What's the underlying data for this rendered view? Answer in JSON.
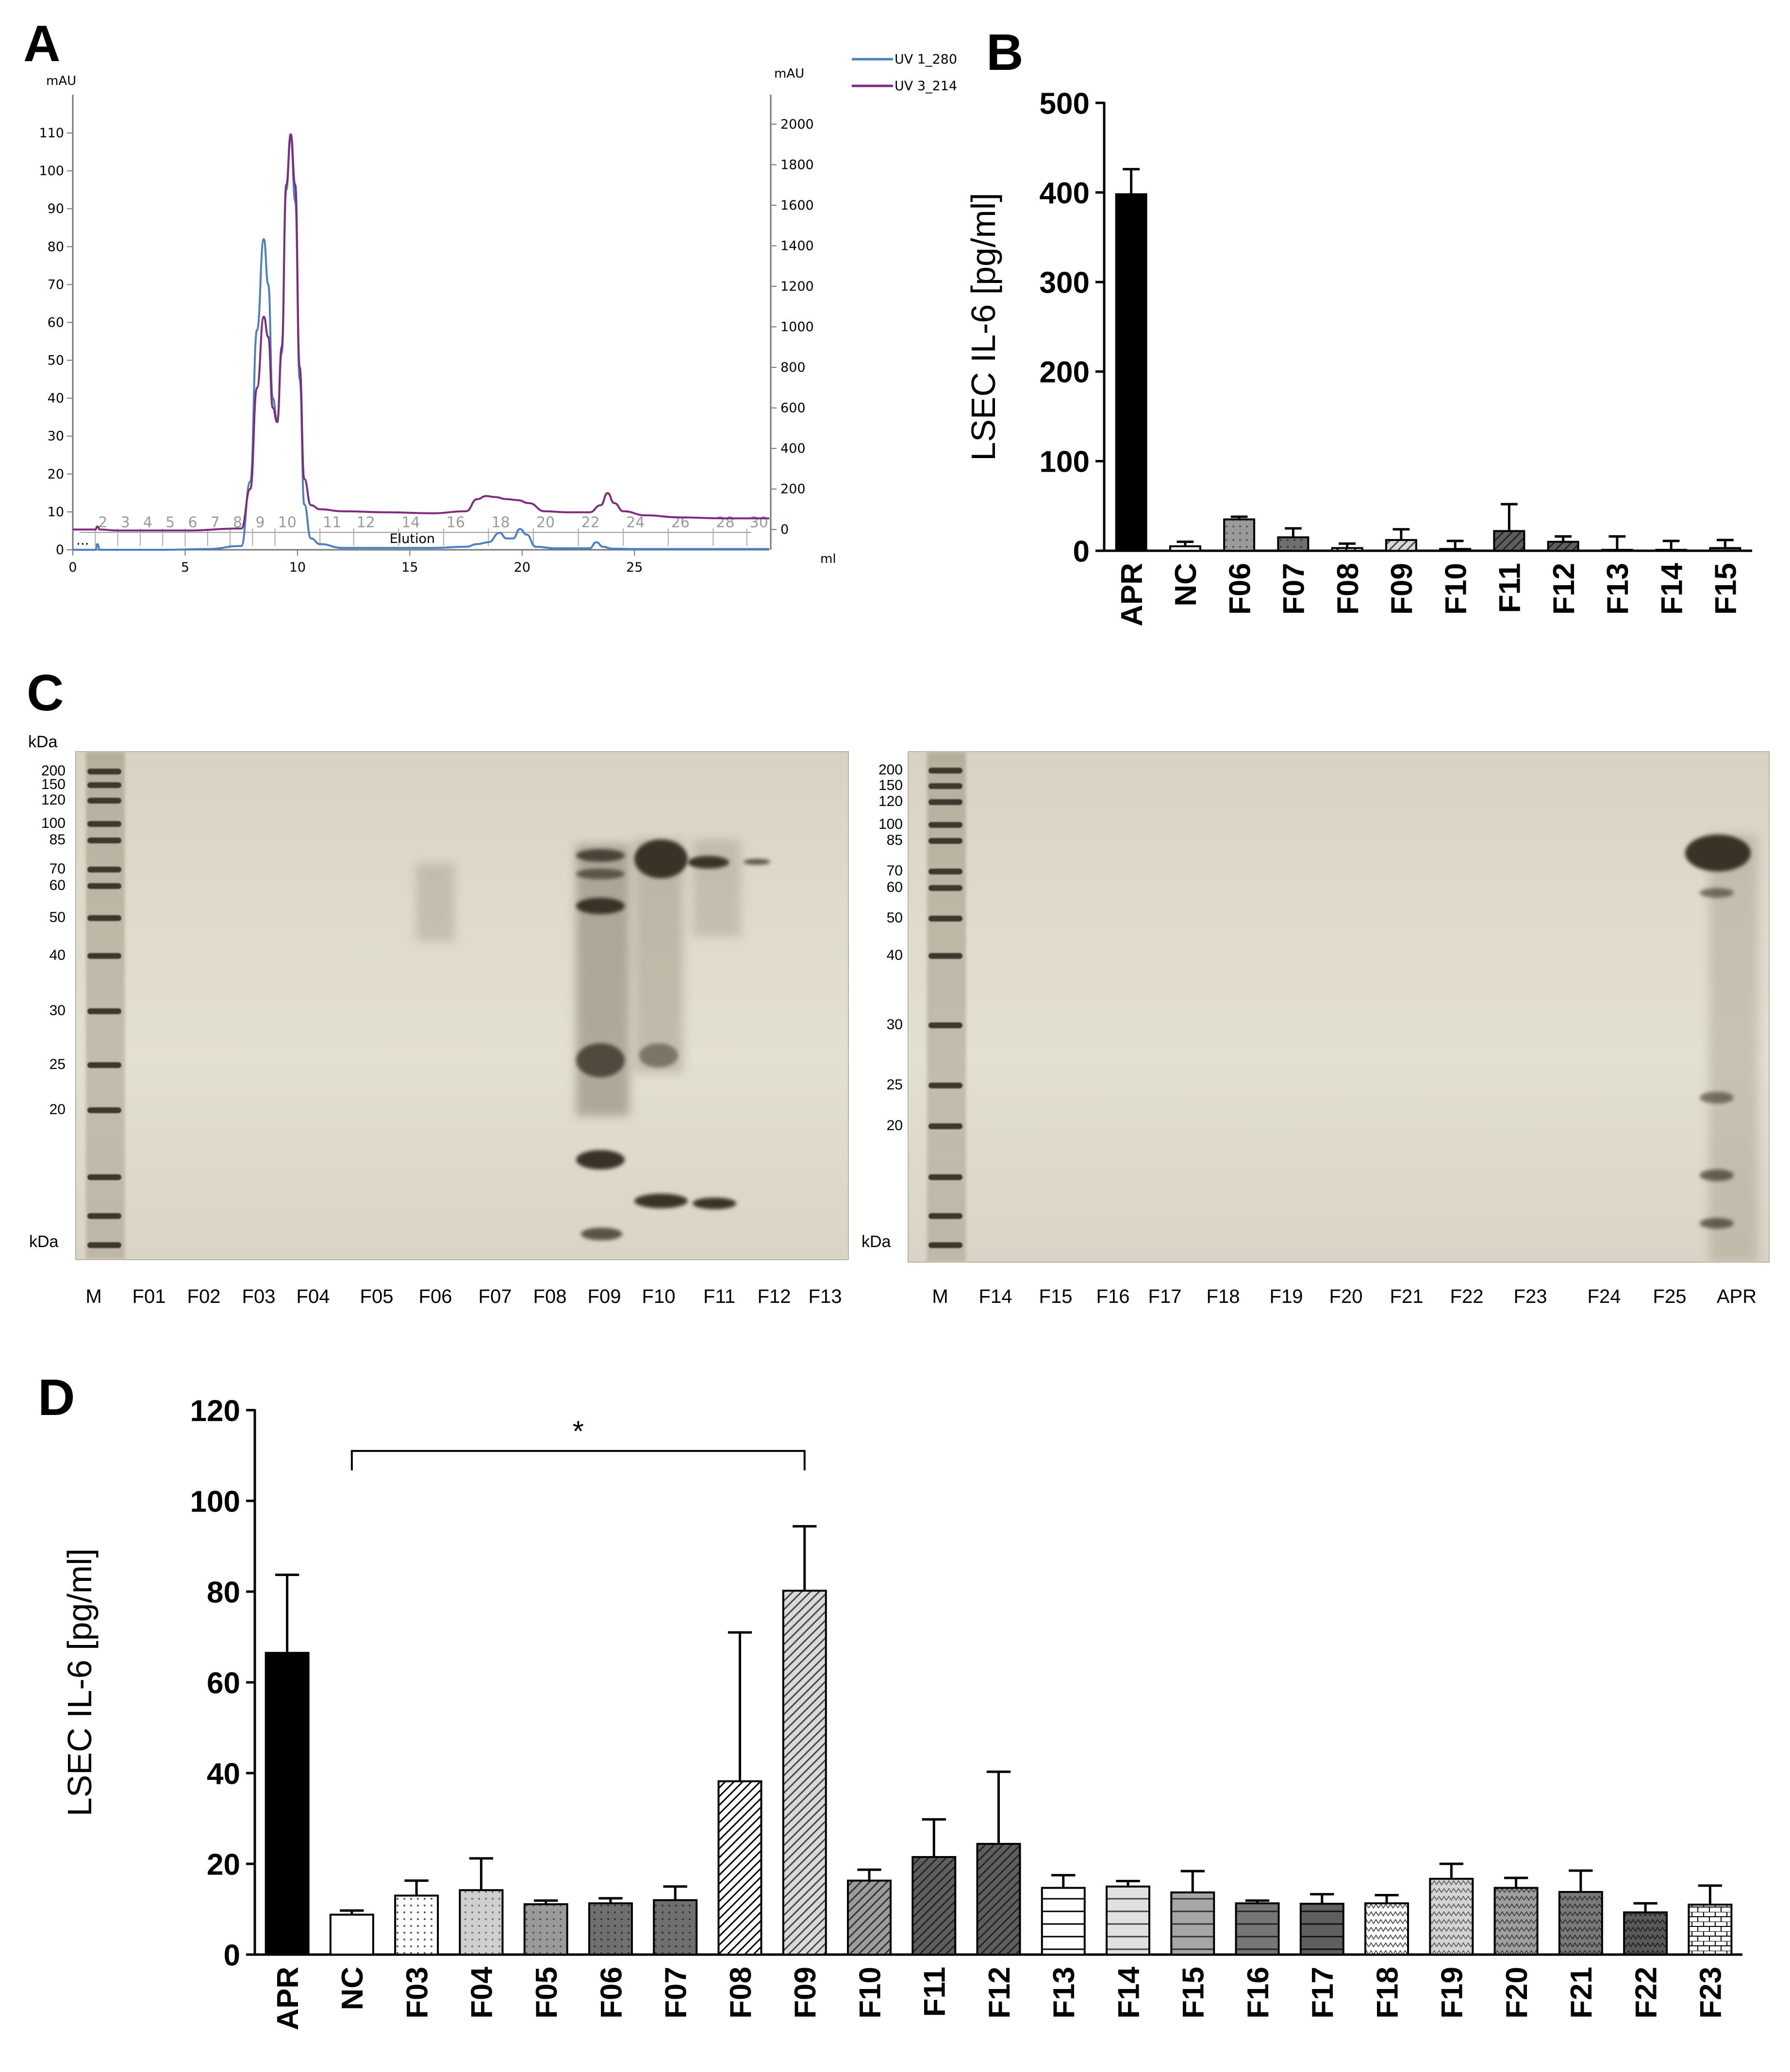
{
  "panels": {
    "A": "A",
    "B": "B",
    "C": "C",
    "D": "D"
  },
  "colors": {
    "uv280": "#4a7fc4",
    "uv214": "#7e2a7e",
    "black": "#000000"
  },
  "chart_data": [
    {
      "id": "A",
      "type": "line",
      "title": "",
      "xlabel": "ml",
      "ylabel_left": "mAU",
      "ylabel_right": "mAU",
      "xlim": [
        0,
        31
      ],
      "ylim_left": [
        0,
        115
      ],
      "ylim_right": [
        -100,
        2050
      ],
      "x_ticks": [
        0,
        5,
        10,
        15,
        20,
        25
      ],
      "y_left_ticks": [
        0,
        10,
        20,
        30,
        40,
        50,
        60,
        70,
        80,
        90,
        100,
        110
      ],
      "y_right_ticks": [
        0,
        200,
        400,
        600,
        800,
        1000,
        1200,
        1400,
        1600,
        1800,
        2000
      ],
      "fraction_labels": [
        "2",
        "3",
        "4",
        "5",
        "6",
        "7",
        "8",
        "9",
        "10",
        "11",
        "12",
        "14",
        "16",
        "18",
        "20",
        "22",
        "24",
        "26",
        "28",
        "30"
      ],
      "fraction_label_x": [
        1,
        2,
        3,
        4,
        5,
        6,
        7,
        8,
        9,
        11,
        12.5,
        14.5,
        16.5,
        18.5,
        20.5,
        22.5,
        24.5,
        26.5,
        28.5,
        30
      ],
      "annotations": [
        "Elution",
        "..."
      ],
      "legend": [
        "UV 1_280",
        "UV 3_214"
      ],
      "series": [
        {
          "name": "UV 1_280",
          "axis": "left",
          "x": [
            0,
            1.0,
            1.1,
            1.2,
            2,
            4,
            6,
            7.5,
            7.9,
            8.2,
            8.5,
            8.7,
            8.9,
            9.1,
            9.3,
            9.5,
            9.7,
            9.9,
            10.1,
            10.3,
            10.6,
            11,
            12,
            14,
            16,
            17.5,
            18,
            18.5,
            19.0,
            19.3,
            19.6,
            19.9,
            20.2,
            20.6,
            21.5,
            22.5,
            23,
            23.3,
            23.6,
            24,
            25,
            27,
            29,
            31
          ],
          "y": [
            0,
            0,
            1.5,
            0,
            0,
            0,
            0.2,
            1,
            18,
            58,
            82,
            70,
            40,
            34,
            52,
            95,
            109,
            92,
            45,
            12,
            3,
            1.5,
            0.5,
            0.5,
            0.5,
            0.8,
            1.5,
            2,
            4.5,
            3,
            3,
            5.5,
            4,
            0.8,
            0.4,
            0.4,
            0.4,
            2,
            0.8,
            0.3,
            0.2,
            0.2,
            0.2,
            0.2
          ]
        },
        {
          "name": "UV 3_214",
          "axis": "right",
          "x": [
            0,
            1.0,
            1.1,
            1.2,
            2,
            5,
            7.5,
            7.9,
            8.2,
            8.5,
            8.7,
            8.9,
            9.1,
            9.3,
            9.5,
            9.7,
            9.9,
            10.1,
            10.3,
            10.6,
            11,
            12,
            14,
            16,
            17.5,
            18,
            18.4,
            18.8,
            19.3,
            19.8,
            20.3,
            21,
            22,
            23,
            23.5,
            23.8,
            24.1,
            24.5,
            25.5,
            27,
            29,
            31
          ],
          "y": [
            0,
            0,
            15,
            0,
            -5,
            -5,
            5,
            200,
            700,
            1050,
            950,
            600,
            530,
            900,
            1700,
            1950,
            1700,
            800,
            250,
            120,
            100,
            90,
            85,
            80,
            90,
            150,
            165,
            160,
            150,
            145,
            130,
            90,
            85,
            85,
            120,
            180,
            130,
            90,
            70,
            60,
            55,
            55
          ]
        }
      ]
    },
    {
      "id": "B",
      "type": "bar",
      "title": "",
      "ylabel": "LSEC IL-6 [pg/ml]",
      "ylim": [
        0,
        500
      ],
      "y_ticks": [
        0,
        100,
        200,
        300,
        400,
        500
      ],
      "categories": [
        "APR",
        "NC",
        "F06",
        "F07",
        "F08",
        "F09",
        "F10",
        "F11",
        "F12",
        "F13",
        "F14",
        "F15"
      ],
      "values": [
        398,
        5,
        35,
        15,
        3,
        12,
        2,
        22,
        10,
        1,
        1,
        3
      ],
      "errors": [
        28,
        5,
        3,
        10,
        5,
        12,
        9,
        30,
        6,
        15,
        10,
        9
      ]
    },
    {
      "id": "D",
      "type": "bar",
      "title": "",
      "ylabel": "LSEC IL-6 [pg/ml]",
      "ylim": [
        0,
        120
      ],
      "y_ticks": [
        0,
        20,
        40,
        60,
        80,
        100,
        120
      ],
      "categories": [
        "APR",
        "NC",
        "F03",
        "F04",
        "F05",
        "F06",
        "F07",
        "F08",
        "F09",
        "F10",
        "F11",
        "F12",
        "F13",
        "F14",
        "F15",
        "F16",
        "F17",
        "F18",
        "F19",
        "F20",
        "F21",
        "F22",
        "F23"
      ],
      "values": [
        66.5,
        8.8,
        13,
        14.2,
        11.1,
        11.3,
        12,
        38.2,
        80.2,
        16.3,
        21.5,
        24.4,
        14.7,
        15,
        13.7,
        11.3,
        11.2,
        11.3,
        16.7,
        14.7,
        13.8,
        9.3,
        11
      ],
      "errors": [
        17.2,
        0.9,
        3.3,
        7,
        0.8,
        1.1,
        3,
        32.8,
        14.2,
        2.4,
        8.3,
        15.9,
        2.8,
        1.2,
        4.7,
        0.6,
        2.1,
        1.8,
        3.3,
        2.2,
        4.7,
        2,
        4.2
      ],
      "significance": {
        "from": "NC",
        "to": "F09",
        "label": "*"
      }
    }
  ],
  "gel": {
    "kda": "kDa",
    "markers_left": [
      "200",
      "150",
      "120",
      "100",
      "85",
      "70",
      "60",
      "50",
      "40",
      "30",
      "25",
      "20"
    ],
    "markers_right": [
      "200",
      "150",
      "120",
      "100",
      "85",
      "70",
      "60",
      "50",
      "40",
      "30",
      "25",
      "20"
    ],
    "lanes_left": [
      "M",
      "F01",
      "F02",
      "F03",
      "F04",
      "F05",
      "F06",
      "F07",
      "F08",
      "F09",
      "F10",
      "F11",
      "F12",
      "F13"
    ],
    "lanes_right": [
      "M",
      "F14",
      "F15",
      "F16",
      "F17",
      "F18",
      "F19",
      "F20",
      "F21",
      "F22",
      "F23",
      "F24",
      "F25",
      "APR"
    ]
  }
}
